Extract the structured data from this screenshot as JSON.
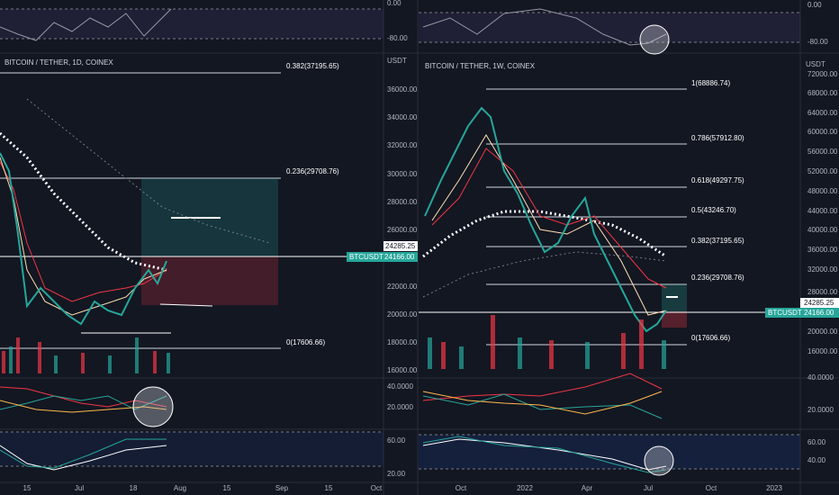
{
  "left": {
    "title": "BITCOIN / TETHER, 1D, COINEX",
    "unit": "USDT",
    "price_ticks": [
      "36000.00",
      "34000.00",
      "32000.00",
      "30000.00",
      "28000.00",
      "26000.00",
      "22000.00",
      "20000.00",
      "18000.00",
      "16000.00"
    ],
    "fib_levels": [
      "0.382(37195.65)",
      "0.236(29708.76)",
      "0(17606.66)"
    ],
    "last_price": "24285.25",
    "symbol": "BTCUSDT",
    "price": "24166.00",
    "osc1_ticks": [
      "0.00",
      "-80.00"
    ],
    "osc2_ticks": [
      "40.0000",
      "20.0000"
    ],
    "osc3_ticks": [
      "60.00",
      "20.00"
    ],
    "time_labels": [
      "15",
      "Jul",
      "18",
      "Aug",
      "15",
      "Sep",
      "15",
      "Oct"
    ]
  },
  "right": {
    "title": "BITCOIN / TETHER, 1W, COINEX",
    "unit": "USDT",
    "price_ticks": [
      "72000.00",
      "68000.00",
      "64000.00",
      "60000.00",
      "56000.00",
      "52000.00",
      "48000.00",
      "44000.00",
      "40000.00",
      "36000.00",
      "32000.00",
      "28000.00",
      "20000.00",
      "16000.00"
    ],
    "fib_levels": [
      "1(68886.74)",
      "0.786(57912.80)",
      "0.618(49297.75)",
      "0.5(43246.70)",
      "0.382(37195.65)",
      "0.236(29708.76)",
      "0(17606.66)"
    ],
    "last_price": "24285.25",
    "symbol": "BTCUSDT",
    "price": "24166.00",
    "osc1_ticks": [
      "0.00",
      "-80.00"
    ],
    "osc2_ticks": [
      "40.0000",
      "20.0000"
    ],
    "osc3_ticks": [
      "60.00",
      "40.00"
    ],
    "time_labels": [
      "Oct",
      "2022",
      "Apr",
      "Jul",
      "Oct",
      "2023"
    ]
  }
}
